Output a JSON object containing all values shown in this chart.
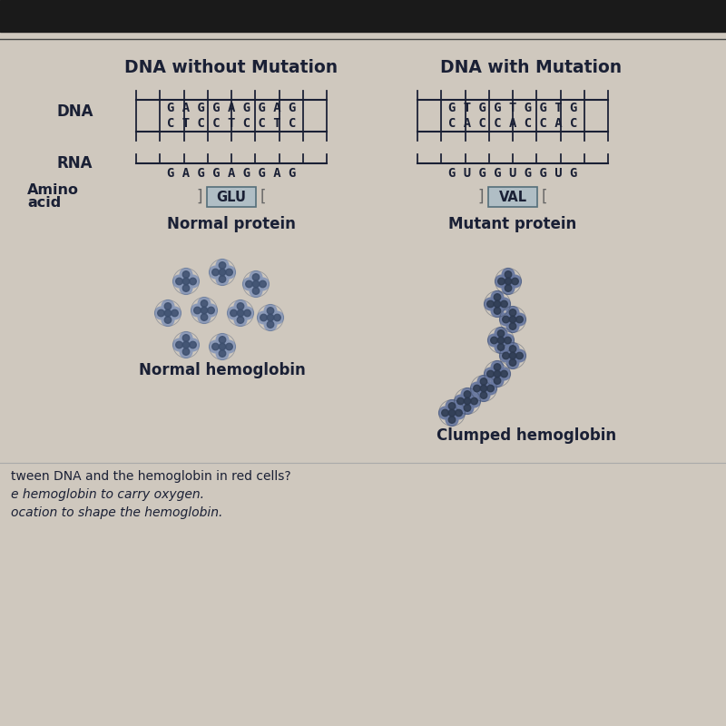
{
  "bg_top_dark": "#1a1a1a",
  "bg_main": "#cfc8be",
  "text_color": "#1a2035",
  "ladder_color": "#1a2035",
  "title_left": "DNA without Mutation",
  "title_right": "DNA with Mutation",
  "dna_label": "DNA",
  "rna_label": "RNA",
  "amino_label_1": "Amino",
  "amino_label_2": "acid",
  "dna_left_top": "G A G G A G G A G",
  "dna_left_bot": "C T C C T C C T C",
  "dna_right_top": "G T G G T G G T G",
  "dna_right_bot": "C A C C A C C A C",
  "rna_left": "G A G G A G G A G",
  "rna_right": "G U G G U G G U G",
  "amino_left": "GLU",
  "amino_right": "VAL",
  "protein_left": "Normal protein",
  "protein_right": "Mutant protein",
  "hemo_left_label": "Normal hemoglobin",
  "hemo_right_label": "Clumped hemoglobin",
  "bottom_texts": [
    "tween DNA and the hemoglobin in red cells?",
    "e hemoglobin to carry oxygen.",
    "ocation to shape the hemoglobin."
  ],
  "box_color": "#b0bec5",
  "box_border": "#546e7a",
  "hemo_col_normal_dark": "#3d4f6e",
  "hemo_col_normal_light": "#8898b8",
  "hemo_col_clump_dark": "#2d3a50",
  "hemo_col_clump_light": "#6878a0"
}
